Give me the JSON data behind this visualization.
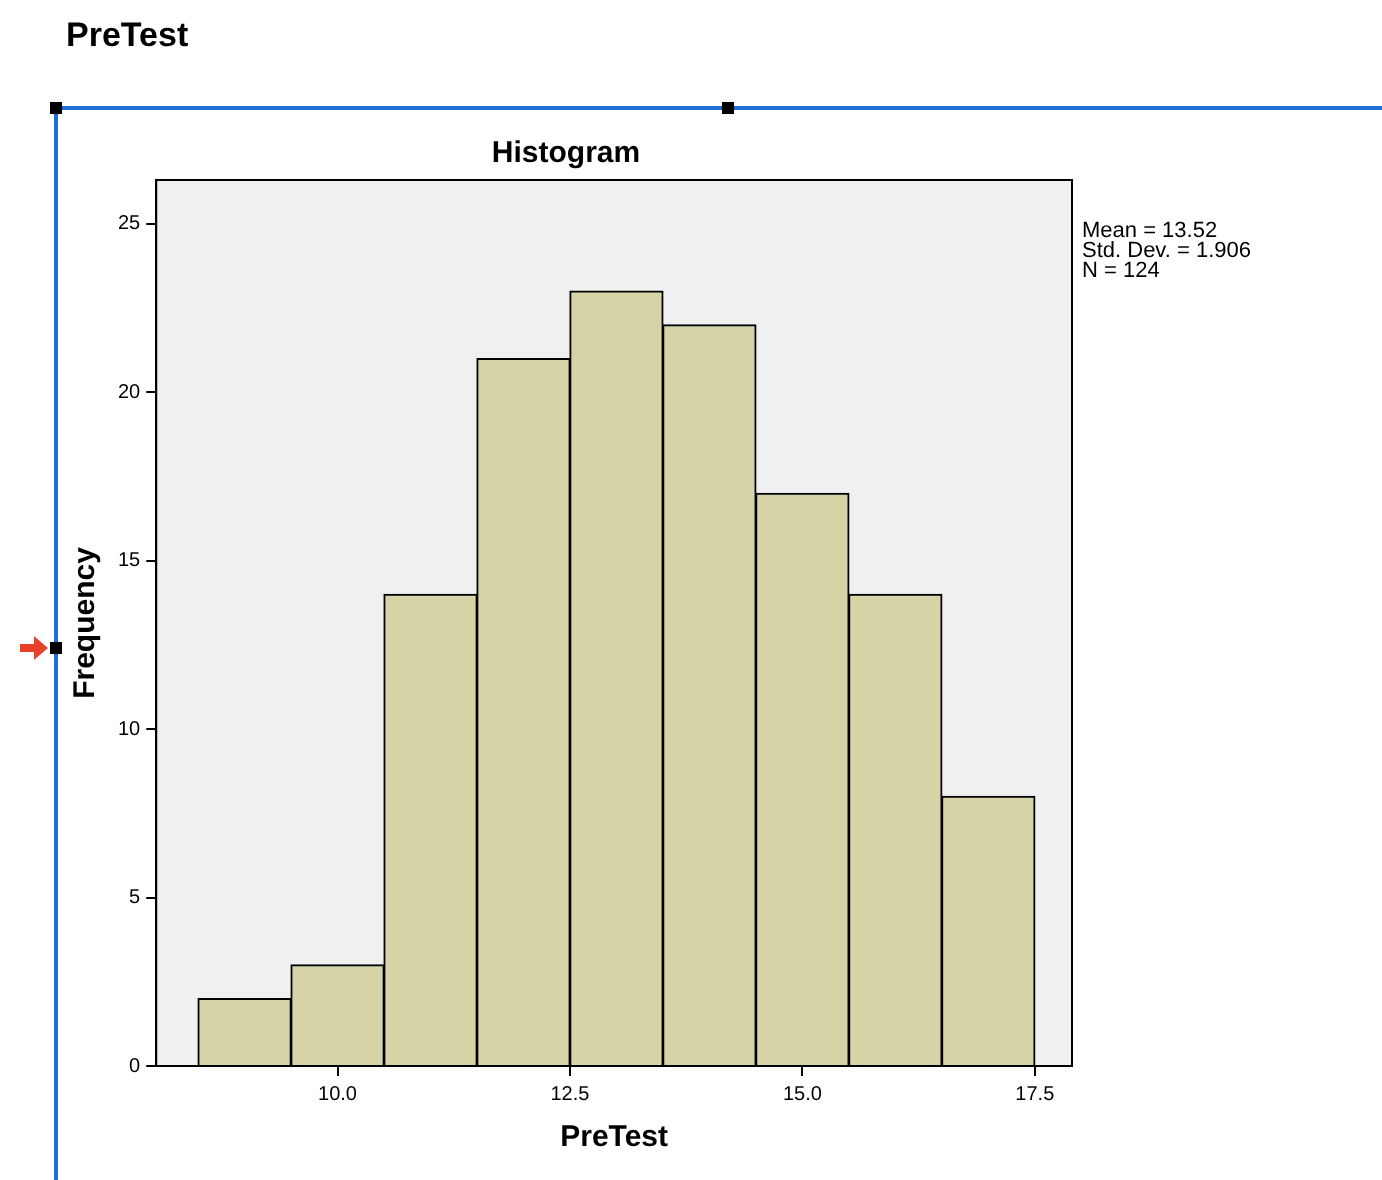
{
  "chart_data": {
    "type": "histogram",
    "title": "Histogram",
    "xlabel": "PreTest",
    "ylabel": "Frequency",
    "annotations": [
      "PreTest",
      "Mean = 13.52",
      "Std. Dev. = 1.906",
      "N = 124"
    ],
    "bins": [
      8.5,
      9.5,
      10.5,
      11.5,
      12.5,
      13.5,
      14.5,
      15.5,
      16.5,
      17.5
    ],
    "values": [
      2,
      3,
      14,
      21,
      23,
      22,
      17,
      14,
      8
    ],
    "color": "#d6d3a6",
    "xlim": [
      8.05,
      17.9
    ],
    "xticks": [
      {
        "value": 10,
        "label": "10.0"
      },
      {
        "value": 12.5,
        "label": "12.5"
      },
      {
        "value": 15,
        "label": "15.0"
      },
      {
        "value": 17.5,
        "label": "17.5"
      }
    ],
    "ylim": [
      0,
      26.3
    ],
    "yticks": [
      0,
      5,
      10,
      15,
      20,
      25
    ],
    "grid": false,
    "legend": false
  }
}
